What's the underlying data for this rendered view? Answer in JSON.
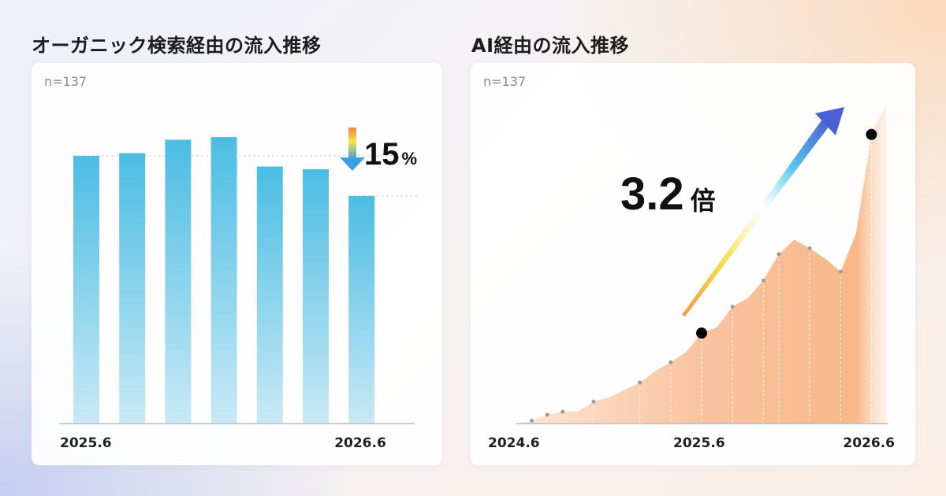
{
  "left_title": "オーガニック検索経由の流入推移",
  "right_title": "AI経由の流入推移",
  "chart_data": [
    {
      "type": "bar",
      "title": "オーガニック検索経由の流入推移",
      "note": "n=137",
      "categories": [
        "2025.6",
        "",
        "",
        "",
        "",
        "",
        "2026.6"
      ],
      "values": [
        100,
        101,
        106,
        107,
        96,
        95,
        85
      ],
      "tick_labels": [
        "2025.6",
        "2026.6"
      ],
      "annotation": {
        "value": "15",
        "unit": "%",
        "direction": "down"
      },
      "ylim": [
        0,
        110
      ],
      "grid": false,
      "colors": {
        "bar_top": "#4bbde3",
        "bar_bottom": "#c9e9f5",
        "arrow_top": "#f2824a",
        "arrow_mid": "#f9e24a",
        "arrow_bottom": "#3aa3df"
      }
    },
    {
      "type": "area",
      "title": "AI経由の流入推移",
      "note": "n=137",
      "x": [
        "2024.6",
        "2024.7",
        "2024.8",
        "2024.9",
        "2024.10",
        "2024.11",
        "2024.12",
        "2025.1",
        "2025.2",
        "2025.3",
        "2025.4",
        "2025.5",
        "2025.6",
        "2025.7",
        "2025.8",
        "2025.9",
        "2025.10",
        "2025.11",
        "2025.12",
        "2026.1",
        "2026.2",
        "2026.3",
        "2026.4",
        "2026.5",
        "2026.6"
      ],
      "values": [
        0.2,
        1.0,
        3.0,
        4.0,
        4.2,
        7.5,
        9.0,
        11.5,
        14.0,
        18.0,
        21.0,
        24.5,
        31.0,
        33.0,
        40.0,
        43.0,
        49.0,
        58.0,
        63.0,
        60.0,
        56.5,
        52.0,
        65.0,
        99.0,
        110.0
      ],
      "markers": {
        "x_indices": [
          2,
          5,
          8,
          10,
          12,
          14,
          16,
          17,
          19,
          21
        ],
        "highlight_indices": [
          12,
          23
        ]
      },
      "tick_labels": [
        "2024.6",
        "2025.6",
        "2026.6"
      ],
      "annotation": {
        "value": "3.2",
        "unit": "倍"
      },
      "ylim": [
        0,
        110
      ],
      "grid": false,
      "colors": {
        "area": "#f8b889",
        "area_light": "#fde3cf",
        "marker": "#9a9a9a",
        "highlight": "#000000",
        "arrow_top": "#4a5fd8",
        "arrow_mid": "#58c8e8",
        "arrow_low": "#f6e24c",
        "arrow_tail": "#f39a3c"
      }
    }
  ]
}
